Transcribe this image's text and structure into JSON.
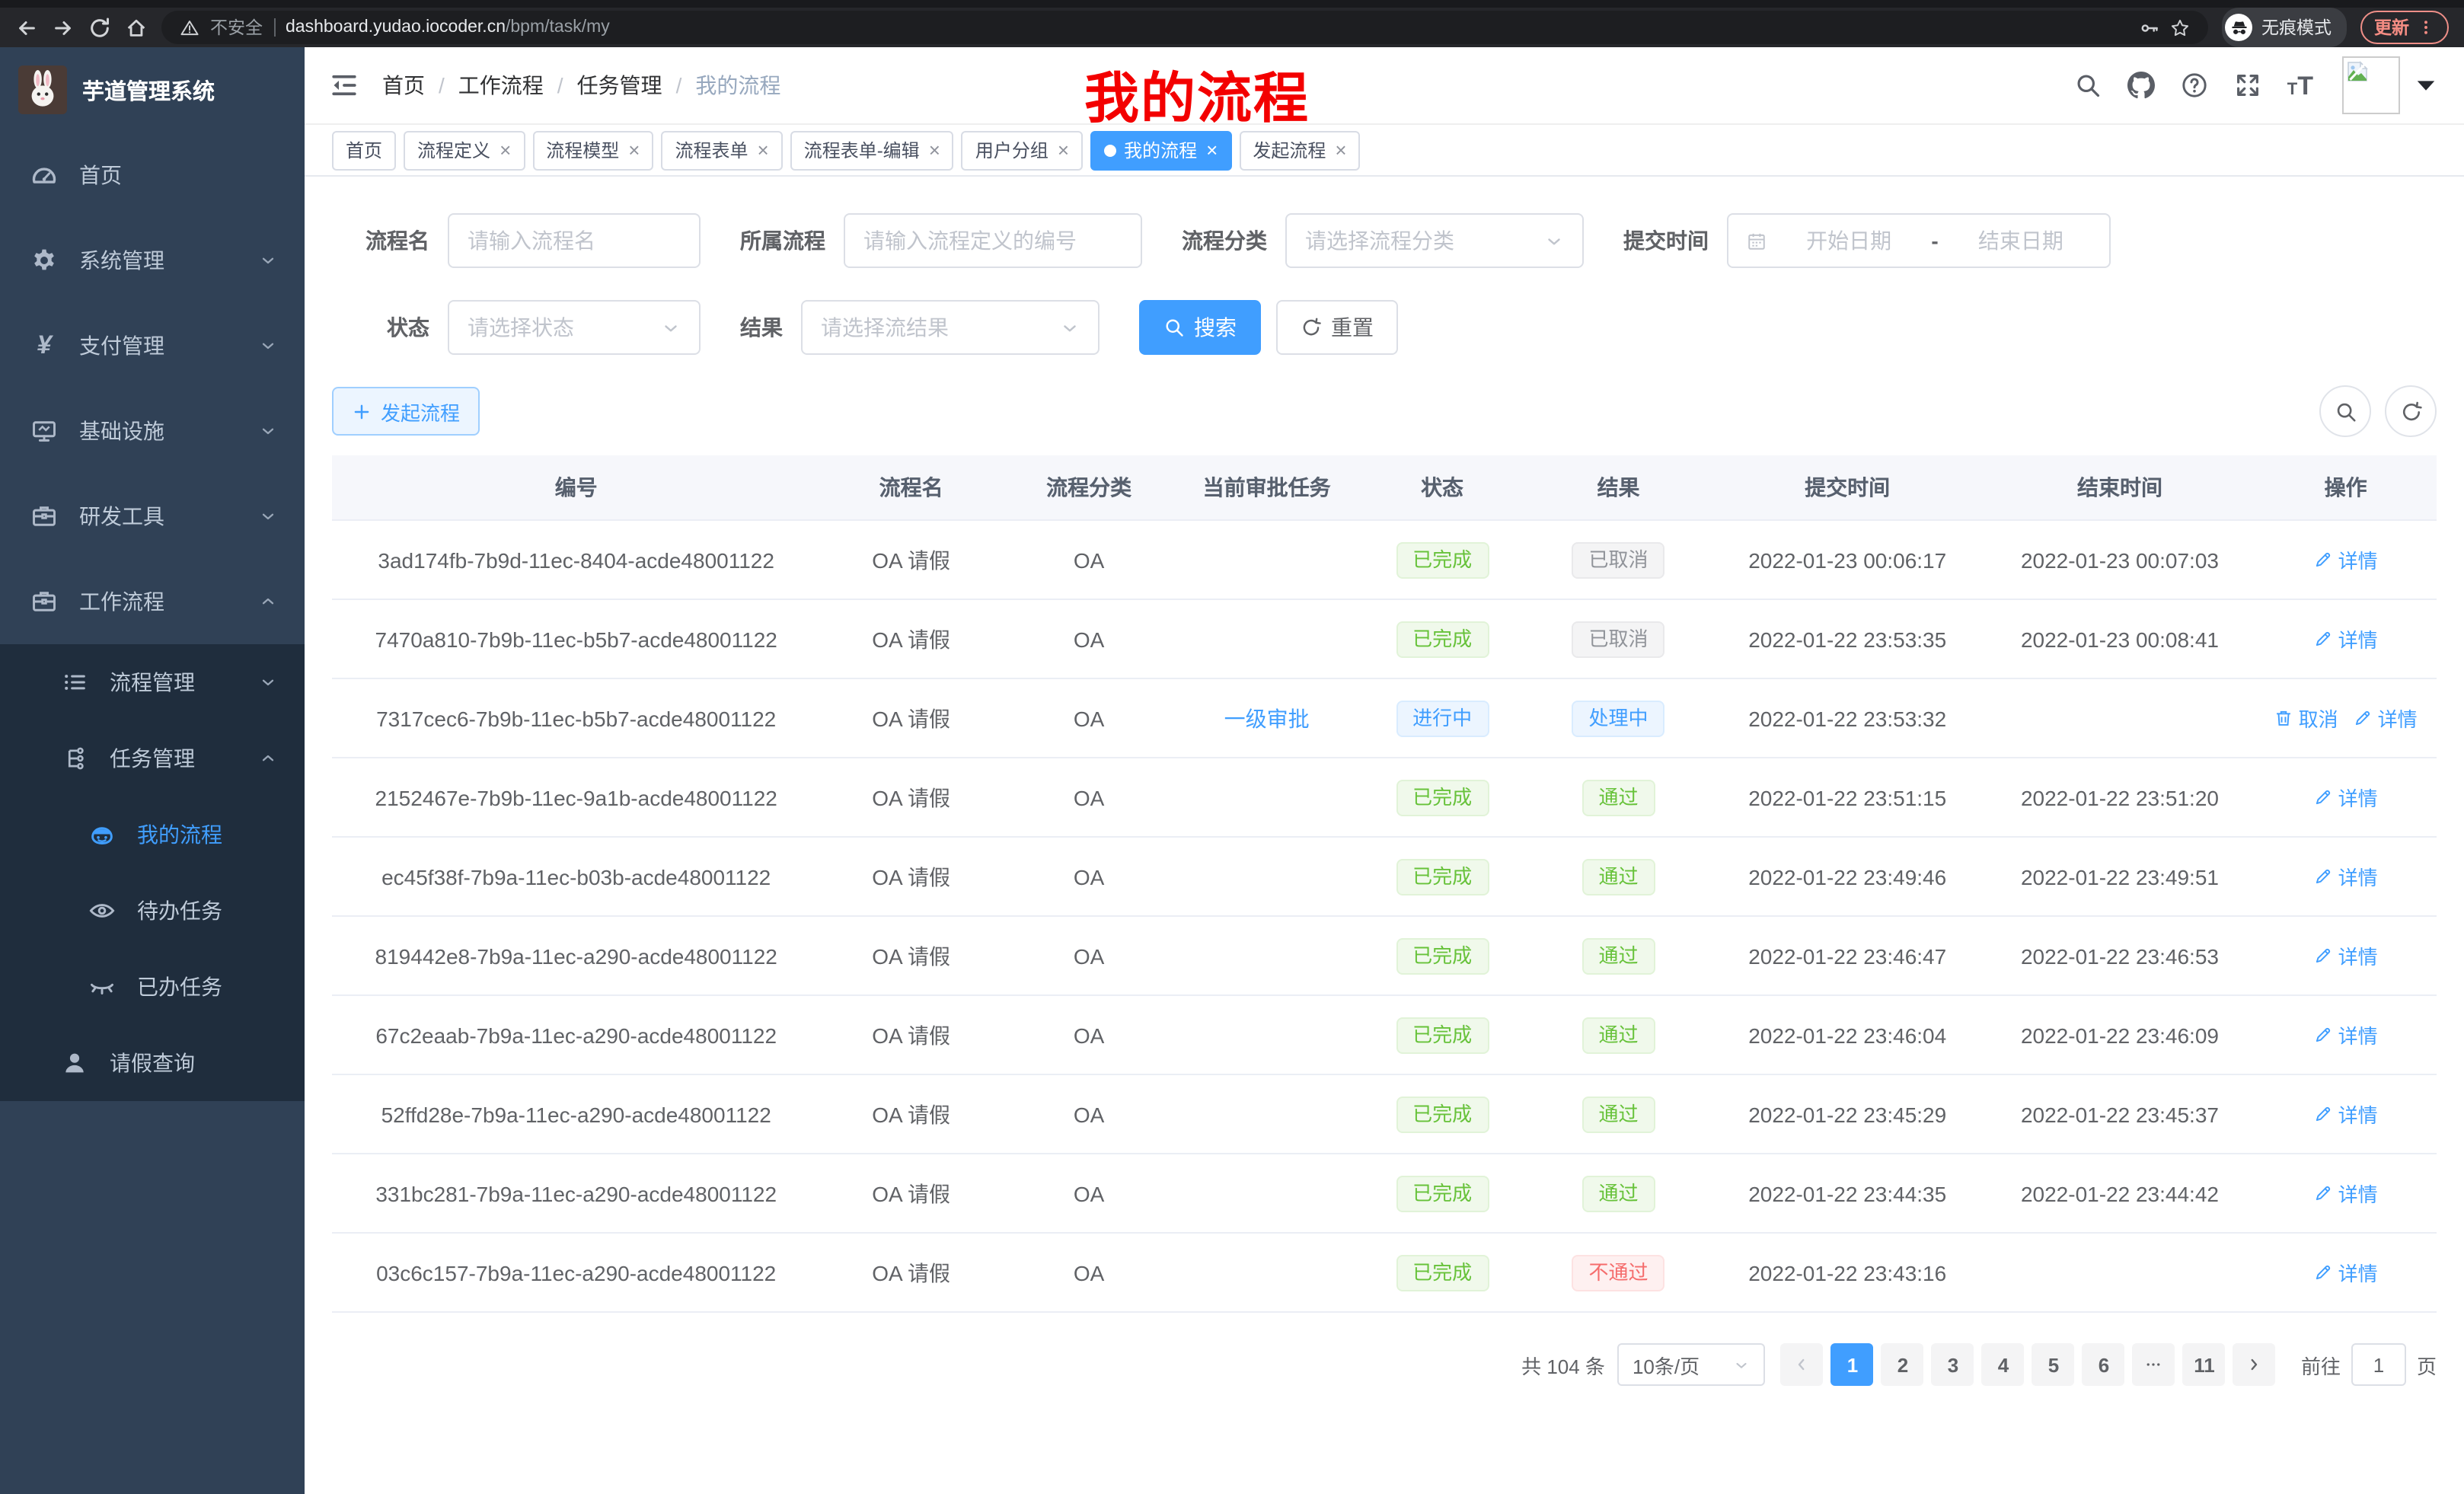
{
  "browser": {
    "security_label": "不安全",
    "url_host": "dashboard.yudao.iocoder.cn",
    "url_path": "/bpm/task/my",
    "incognito_label": "无痕模式",
    "update_label": "更新"
  },
  "sidebar": {
    "app_title": "芋道管理系统",
    "menu": [
      {
        "key": "home",
        "label": "首页",
        "icon": "dashboard",
        "level": 1
      },
      {
        "key": "system",
        "label": "系统管理",
        "icon": "gear",
        "level": 1,
        "arrow": "down"
      },
      {
        "key": "payment",
        "label": "支付管理",
        "icon": "yen",
        "level": 1,
        "arrow": "down"
      },
      {
        "key": "infra",
        "label": "基础设施",
        "icon": "monitor",
        "level": 1,
        "arrow": "down"
      },
      {
        "key": "devtools",
        "label": "研发工具",
        "icon": "toolbox",
        "level": 1,
        "arrow": "down"
      },
      {
        "key": "workflow",
        "label": "工作流程",
        "icon": "toolbox",
        "level": 1,
        "arrow": "up"
      },
      {
        "key": "process-mgmt",
        "label": "流程管理",
        "icon": "list",
        "level": 2,
        "arrow": "down",
        "sub": true
      },
      {
        "key": "task-mgmt",
        "label": "任务管理",
        "icon": "flow",
        "level": 2,
        "arrow": "up",
        "sub": true
      },
      {
        "key": "my-process",
        "label": "我的流程",
        "icon": "robot",
        "level": 3,
        "active": true,
        "sub": true
      },
      {
        "key": "todo-task",
        "label": "待办任务",
        "icon": "eye",
        "level": 3,
        "sub": true
      },
      {
        "key": "done-task",
        "label": "已办任务",
        "icon": "eye-closed",
        "level": 3,
        "sub": true
      },
      {
        "key": "leave-query",
        "label": "请假查询",
        "icon": "user",
        "level": 2,
        "sub": true
      }
    ]
  },
  "header": {
    "breadcrumb": [
      "首页",
      "工作流程",
      "任务管理",
      "我的流程"
    ],
    "annotation": "我的流程"
  },
  "tabs": [
    {
      "key": "home",
      "label": "首页",
      "closable": false
    },
    {
      "key": "process-definition",
      "label": "流程定义",
      "closable": true
    },
    {
      "key": "process-model",
      "label": "流程模型",
      "closable": true
    },
    {
      "key": "process-form",
      "label": "流程表单",
      "closable": true
    },
    {
      "key": "process-form-edit",
      "label": "流程表单-编辑",
      "closable": true
    },
    {
      "key": "user-group",
      "label": "用户分组",
      "closable": true
    },
    {
      "key": "my-process",
      "label": "我的流程",
      "closable": true,
      "active": true
    },
    {
      "key": "start-process",
      "label": "发起流程",
      "closable": true
    }
  ],
  "filters": {
    "name_label": "流程名",
    "name_placeholder": "请输入流程名",
    "definition_label": "所属流程",
    "definition_placeholder": "请输入流程定义的编号",
    "category_label": "流程分类",
    "category_placeholder": "请选择流程分类",
    "time_label": "提交时间",
    "date_start_placeholder": "开始日期",
    "date_separator": "-",
    "date_end_placeholder": "结束日期",
    "status_label": "状态",
    "status_placeholder": "请选择状态",
    "result_label": "结果",
    "result_placeholder": "请选择流结果",
    "search_button": "搜索",
    "reset_button": "重置"
  },
  "toolbar": {
    "new_button": "发起流程"
  },
  "table": {
    "columns": [
      "编号",
      "流程名",
      "流程分类",
      "当前审批任务",
      "状态",
      "结果",
      "提交时间",
      "结束时间",
      "操作"
    ],
    "rows": [
      {
        "id": "3ad174fb-7b9d-11ec-8404-acde48001122",
        "name": "OA 请假",
        "category": "OA",
        "task": "",
        "status": {
          "text": "已完成",
          "type": "success"
        },
        "result": {
          "text": "已取消",
          "type": "info"
        },
        "submit_time": "2022-01-23 00:06:17",
        "end_time": "2022-01-23 00:07:03",
        "actions": [
          {
            "key": "detail",
            "label": "详情",
            "icon": "edit"
          }
        ]
      },
      {
        "id": "7470a810-7b9b-11ec-b5b7-acde48001122",
        "name": "OA 请假",
        "category": "OA",
        "task": "",
        "status": {
          "text": "已完成",
          "type": "success"
        },
        "result": {
          "text": "已取消",
          "type": "info"
        },
        "submit_time": "2022-01-22 23:53:35",
        "end_time": "2022-01-23 00:08:41",
        "actions": [
          {
            "key": "detail",
            "label": "详情",
            "icon": "edit"
          }
        ]
      },
      {
        "id": "7317cec6-7b9b-11ec-b5b7-acde48001122",
        "name": "OA 请假",
        "category": "OA",
        "task": "一级审批",
        "status": {
          "text": "进行中",
          "type": "primary"
        },
        "result": {
          "text": "处理中",
          "type": "primary"
        },
        "submit_time": "2022-01-22 23:53:32",
        "end_time": "",
        "actions": [
          {
            "key": "cancel",
            "label": "取消",
            "icon": "delete"
          },
          {
            "key": "detail",
            "label": "详情",
            "icon": "edit"
          }
        ]
      },
      {
        "id": "2152467e-7b9b-11ec-9a1b-acde48001122",
        "name": "OA 请假",
        "category": "OA",
        "task": "",
        "status": {
          "text": "已完成",
          "type": "success"
        },
        "result": {
          "text": "通过",
          "type": "success"
        },
        "submit_time": "2022-01-22 23:51:15",
        "end_time": "2022-01-22 23:51:20",
        "actions": [
          {
            "key": "detail",
            "label": "详情",
            "icon": "edit"
          }
        ]
      },
      {
        "id": "ec45f38f-7b9a-11ec-b03b-acde48001122",
        "name": "OA 请假",
        "category": "OA",
        "task": "",
        "status": {
          "text": "已完成",
          "type": "success"
        },
        "result": {
          "text": "通过",
          "type": "success"
        },
        "submit_time": "2022-01-22 23:49:46",
        "end_time": "2022-01-22 23:49:51",
        "actions": [
          {
            "key": "detail",
            "label": "详情",
            "icon": "edit"
          }
        ]
      },
      {
        "id": "819442e8-7b9a-11ec-a290-acde48001122",
        "name": "OA 请假",
        "category": "OA",
        "task": "",
        "status": {
          "text": "已完成",
          "type": "success"
        },
        "result": {
          "text": "通过",
          "type": "success"
        },
        "submit_time": "2022-01-22 23:46:47",
        "end_time": "2022-01-22 23:46:53",
        "actions": [
          {
            "key": "detail",
            "label": "详情",
            "icon": "edit"
          }
        ]
      },
      {
        "id": "67c2eaab-7b9a-11ec-a290-acde48001122",
        "name": "OA 请假",
        "category": "OA",
        "task": "",
        "status": {
          "text": "已完成",
          "type": "success"
        },
        "result": {
          "text": "通过",
          "type": "success"
        },
        "submit_time": "2022-01-22 23:46:04",
        "end_time": "2022-01-22 23:46:09",
        "actions": [
          {
            "key": "detail",
            "label": "详情",
            "icon": "edit"
          }
        ]
      },
      {
        "id": "52ffd28e-7b9a-11ec-a290-acde48001122",
        "name": "OA 请假",
        "category": "OA",
        "task": "",
        "status": {
          "text": "已完成",
          "type": "success"
        },
        "result": {
          "text": "通过",
          "type": "success"
        },
        "submit_time": "2022-01-22 23:45:29",
        "end_time": "2022-01-22 23:45:37",
        "actions": [
          {
            "key": "detail",
            "label": "详情",
            "icon": "edit"
          }
        ]
      },
      {
        "id": "331bc281-7b9a-11ec-a290-acde48001122",
        "name": "OA 请假",
        "category": "OA",
        "task": "",
        "status": {
          "text": "已完成",
          "type": "success"
        },
        "result": {
          "text": "通过",
          "type": "success"
        },
        "submit_time": "2022-01-22 23:44:35",
        "end_time": "2022-01-22 23:44:42",
        "actions": [
          {
            "key": "detail",
            "label": "详情",
            "icon": "edit"
          }
        ]
      },
      {
        "id": "03c6c157-7b9a-11ec-a290-acde48001122",
        "name": "OA 请假",
        "category": "OA",
        "task": "",
        "status": {
          "text": "已完成",
          "type": "success"
        },
        "result": {
          "text": "不通过",
          "type": "danger"
        },
        "submit_time": "2022-01-22 23:43:16",
        "end_time": "",
        "actions": [
          {
            "key": "detail",
            "label": "详情",
            "icon": "edit"
          }
        ]
      }
    ]
  },
  "pagination": {
    "total": "共 104 条",
    "page_size": "10条/页",
    "pages": [
      "1",
      "2",
      "3",
      "4",
      "5",
      "6",
      "···",
      "11"
    ],
    "active_page": "1",
    "goto_prefix": "前往",
    "goto_value": "1",
    "goto_suffix": "页"
  }
}
